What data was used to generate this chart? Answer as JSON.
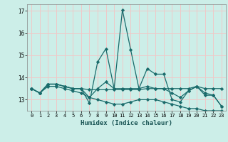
{
  "xlabel": "Humidex (Indice chaleur)",
  "xlim": [
    -0.5,
    23.5
  ],
  "ylim": [
    12.5,
    17.3
  ],
  "yticks": [
    13,
    14,
    15,
    16,
    17
  ],
  "xticks": [
    0,
    1,
    2,
    3,
    4,
    5,
    6,
    7,
    8,
    9,
    10,
    11,
    12,
    13,
    14,
    15,
    16,
    17,
    18,
    19,
    20,
    21,
    22,
    23
  ],
  "bg_color": "#cceee8",
  "grid_color": "#f0c8c8",
  "line_color": "#1a6b6b",
  "series": [
    [
      13.5,
      13.3,
      13.7,
      13.7,
      13.6,
      13.5,
      13.5,
      12.85,
      14.7,
      15.3,
      13.5,
      17.05,
      15.25,
      13.5,
      14.4,
      14.15,
      14.15,
      13.0,
      12.9,
      13.4,
      13.6,
      13.2,
      13.2,
      12.7
    ],
    [
      13.5,
      13.3,
      13.7,
      13.7,
      13.6,
      13.5,
      13.5,
      13.45,
      13.45,
      13.45,
      13.45,
      13.45,
      13.45,
      13.45,
      13.5,
      13.5,
      13.5,
      13.5,
      13.5,
      13.5,
      13.6,
      13.5,
      13.5,
      13.5
    ],
    [
      13.5,
      13.3,
      13.7,
      13.7,
      13.6,
      13.5,
      13.5,
      13.1,
      13.5,
      13.8,
      13.5,
      13.5,
      13.5,
      13.5,
      13.6,
      13.5,
      13.5,
      13.3,
      13.1,
      13.4,
      13.6,
      13.3,
      13.2,
      12.7
    ],
    [
      13.5,
      13.3,
      13.6,
      13.6,
      13.5,
      13.4,
      13.3,
      13.1,
      13.0,
      12.9,
      12.8,
      12.8,
      12.9,
      13.0,
      13.0,
      13.0,
      12.9,
      12.8,
      12.7,
      12.6,
      12.6,
      12.5,
      12.5,
      12.5
    ]
  ]
}
